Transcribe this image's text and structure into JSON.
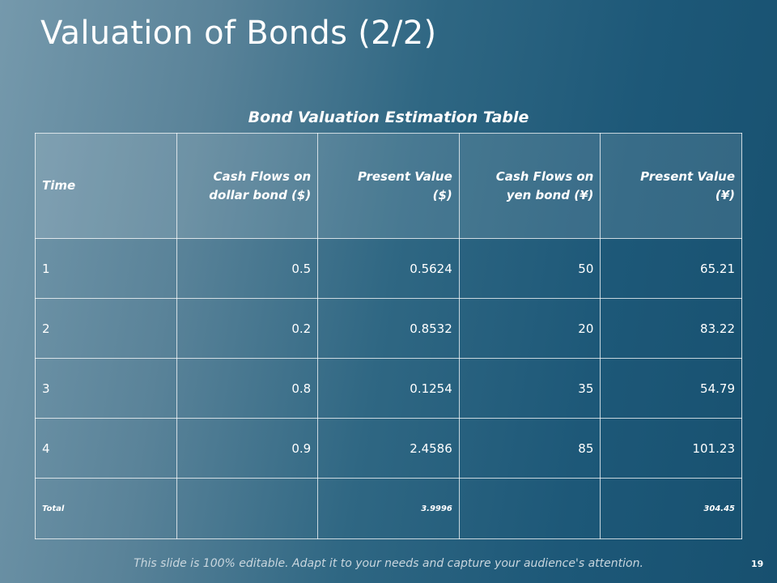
{
  "header": {
    "title": "Valuation of Bonds (2/2)"
  },
  "table": {
    "title": "Bond Valuation Estimation Table",
    "columns": [
      "Time",
      "Cash Flows on dollar bond ($)",
      "Present Value ($)",
      "Cash Flows on yen bond (¥)",
      "Present Value (¥)"
    ],
    "rows": [
      [
        "1",
        "0.5",
        "0.5624",
        "50",
        "65.21"
      ],
      [
        "2",
        "0.2",
        "0.8532",
        "20",
        "83.22"
      ],
      [
        "3",
        "0.8",
        "0.1254",
        "35",
        "54.79"
      ],
      [
        "4",
        "0.9",
        "2.4586",
        "85",
        "101.23"
      ]
    ],
    "total": {
      "label": "Total",
      "present_value_usd": "3.9996",
      "present_value_yen": "304.45"
    }
  },
  "footer": {
    "note": "This slide is 100% editable. Adapt it to your needs and capture your audience's attention.",
    "page_number": "19"
  }
}
